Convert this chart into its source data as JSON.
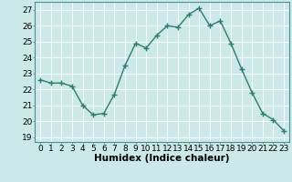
{
  "x": [
    0,
    1,
    2,
    3,
    4,
    5,
    6,
    7,
    8,
    9,
    10,
    11,
    12,
    13,
    14,
    15,
    16,
    17,
    18,
    19,
    20,
    21,
    22,
    23
  ],
  "y": [
    22.6,
    22.4,
    22.4,
    22.2,
    21.0,
    20.4,
    20.5,
    21.7,
    23.5,
    24.9,
    24.6,
    25.4,
    26.0,
    25.9,
    26.7,
    27.1,
    26.0,
    26.3,
    24.9,
    23.3,
    21.8,
    20.5,
    20.1,
    19.4
  ],
  "line_color": "#2e7d6e",
  "marker": "+",
  "marker_size": 4,
  "bg_color": "#cce8e8",
  "grid_major_color": "#ffffff",
  "grid_minor_color": "#ddeaea",
  "xlabel": "Humidex (Indice chaleur)",
  "ylabel_ticks": [
    19,
    20,
    21,
    22,
    23,
    24,
    25,
    26,
    27
  ],
  "xlim": [
    -0.5,
    23.5
  ],
  "ylim": [
    18.7,
    27.5
  ],
  "tick_label_fontsize": 6.5,
  "xlabel_fontsize": 7.5,
  "linewidth": 1.0
}
